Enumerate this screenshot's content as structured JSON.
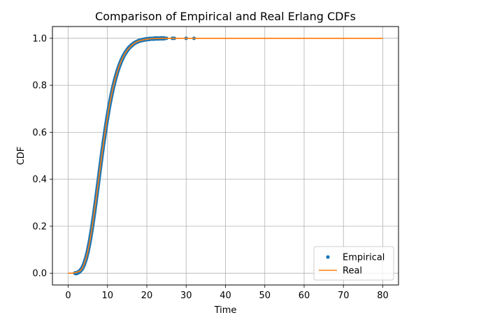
{
  "chart_data": {
    "type": "line",
    "title": "Comparison of Empirical and Real Erlang CDFs",
    "xlabel": "Time",
    "ylabel": "CDF",
    "xlim": [
      -4,
      84
    ],
    "ylim": [
      -0.05,
      1.05
    ],
    "xticks": [
      0,
      10,
      20,
      30,
      40,
      50,
      60,
      70,
      80
    ],
    "yticks": [
      0.0,
      0.2,
      0.4,
      0.6,
      0.8,
      1.0
    ],
    "xtick_labels": [
      "0",
      "10",
      "20",
      "30",
      "40",
      "50",
      "60",
      "70",
      "80"
    ],
    "ytick_labels": [
      "0.0",
      "0.2",
      "0.4",
      "0.6",
      "0.8",
      "1.0"
    ],
    "grid": true,
    "legend_position": "lower-right",
    "series": [
      {
        "name": "Empirical",
        "style": "markers",
        "color": "#1f77b4",
        "x": [
          1.8,
          2.1,
          2.5,
          3.0,
          3.5,
          4.0,
          4.5,
          5.0,
          5.5,
          6.0,
          6.5,
          7.0,
          7.5,
          8.0,
          8.5,
          9.0,
          9.5,
          10.0,
          10.5,
          11.0,
          11.5,
          12.0,
          12.5,
          13.0,
          13.5,
          14.0,
          14.5,
          15.0,
          15.5,
          16.0,
          16.5,
          17.0,
          17.5,
          18.0,
          18.5,
          19.0,
          19.5,
          20.0,
          20.5,
          21.0,
          21.5,
          22.0,
          22.5,
          23.0,
          23.5,
          24.0,
          24.5,
          25.0,
          26.5,
          27.0,
          30.0,
          32.0
        ],
        "y": [
          0.0,
          0.0,
          0.003,
          0.009,
          0.019,
          0.036,
          0.061,
          0.094,
          0.136,
          0.186,
          0.242,
          0.303,
          0.367,
          0.432,
          0.496,
          0.557,
          0.614,
          0.667,
          0.715,
          0.758,
          0.796,
          0.829,
          0.858,
          0.883,
          0.904,
          0.922,
          0.937,
          0.949,
          0.96,
          0.968,
          0.975,
          0.981,
          0.985,
          0.989,
          0.991,
          0.993,
          0.995,
          0.996,
          0.997,
          0.998,
          0.998,
          0.999,
          0.999,
          0.999,
          1.0,
          1.0,
          1.0,
          1.0,
          1.0,
          1.0,
          1.0,
          1.0
        ]
      },
      {
        "name": "Real",
        "style": "line",
        "color": "#ff7f0e",
        "x": [
          0,
          1,
          2,
          3,
          3.5,
          4,
          4.5,
          5,
          5.5,
          6,
          6.5,
          7,
          7.5,
          8,
          8.5,
          9,
          9.5,
          10,
          10.5,
          11,
          11.5,
          12,
          12.5,
          13,
          13.5,
          14,
          14.5,
          15,
          16,
          17,
          18,
          19,
          20,
          21,
          22,
          23,
          24,
          26,
          30,
          40,
          50,
          60,
          70,
          80
        ],
        "y": [
          0.0,
          0.0,
          0.003,
          0.009,
          0.019,
          0.036,
          0.061,
          0.094,
          0.136,
          0.186,
          0.242,
          0.303,
          0.367,
          0.432,
          0.496,
          0.557,
          0.614,
          0.667,
          0.715,
          0.758,
          0.796,
          0.829,
          0.858,
          0.883,
          0.904,
          0.922,
          0.937,
          0.949,
          0.968,
          0.981,
          0.989,
          0.993,
          0.996,
          0.998,
          0.999,
          0.999,
          1.0,
          1.0,
          1.0,
          1.0,
          1.0,
          1.0,
          1.0,
          1.0
        ]
      }
    ]
  }
}
